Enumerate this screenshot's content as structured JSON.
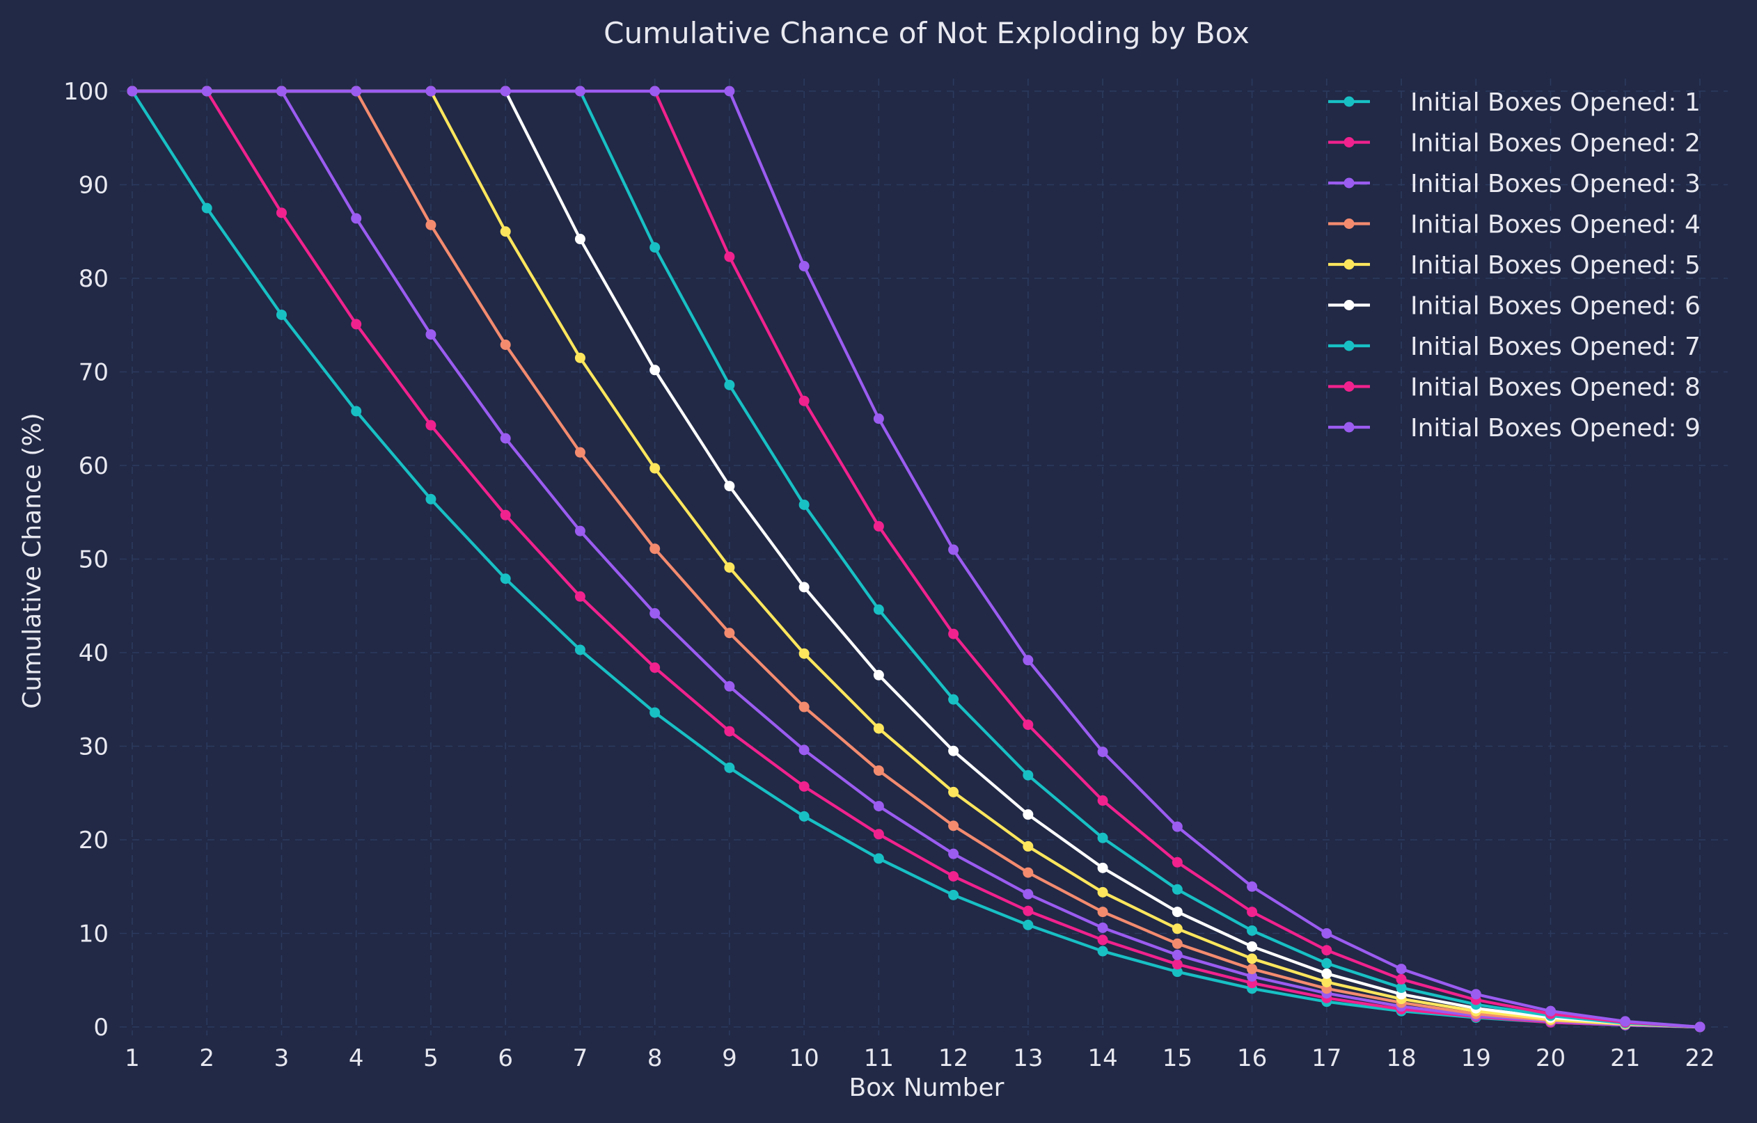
{
  "chart_data": {
    "type": "line",
    "title": "Cumulative Chance of Not Exploding by Box",
    "xlabel": "Box Number",
    "ylabel": "Cumulative Chance (%)",
    "xlim": [
      1,
      22
    ],
    "ylim": [
      0,
      100
    ],
    "x_ticks": [
      1,
      2,
      3,
      4,
      5,
      6,
      7,
      8,
      9,
      10,
      11,
      12,
      13,
      14,
      15,
      16,
      17,
      18,
      19,
      20,
      21,
      22
    ],
    "y_ticks": [
      0,
      10,
      20,
      30,
      40,
      50,
      60,
      70,
      80,
      90,
      100
    ],
    "grid": true,
    "legend_position": "top-right",
    "x": [
      1,
      2,
      3,
      4,
      5,
      6,
      7,
      8,
      9,
      10,
      11,
      12,
      13,
      14,
      15,
      16,
      17,
      18,
      19,
      20,
      21,
      22
    ],
    "series": [
      {
        "name": "Initial Boxes Opened: 1",
        "color": "#18c0c4",
        "values": [
          100,
          87.5,
          76.1,
          65.8,
          56.4,
          47.9,
          40.3,
          33.6,
          27.7,
          22.5,
          18.0,
          14.1,
          10.9,
          8.1,
          5.9,
          4.1,
          2.7,
          1.7,
          1.0,
          0.5,
          0.2,
          0
        ]
      },
      {
        "name": "Initial Boxes Opened: 2",
        "color": "#f0228d",
        "values": [
          100,
          100,
          87.0,
          75.1,
          64.3,
          54.7,
          46.0,
          38.4,
          31.6,
          25.7,
          20.6,
          16.1,
          12.4,
          9.3,
          6.7,
          4.7,
          3.1,
          1.9,
          1.1,
          0.5,
          0.2,
          0
        ]
      },
      {
        "name": "Initial Boxes Opened: 3",
        "color": "#9b5cf0",
        "values": [
          100,
          100,
          100,
          86.4,
          74.0,
          62.9,
          53.0,
          44.2,
          36.4,
          29.6,
          23.6,
          18.5,
          14.2,
          10.6,
          7.7,
          5.4,
          3.6,
          2.2,
          1.2,
          0.6,
          0.2,
          0
        ]
      },
      {
        "name": "Initial Boxes Opened: 4",
        "color": "#f38b6f",
        "values": [
          100,
          100,
          100,
          100,
          85.7,
          72.9,
          61.4,
          51.1,
          42.1,
          34.2,
          27.4,
          21.5,
          16.5,
          12.3,
          8.9,
          6.2,
          4.1,
          2.6,
          1.4,
          0.7,
          0.3,
          0
        ]
      },
      {
        "name": "Initial Boxes Opened: 5",
        "color": "#fde65d",
        "values": [
          100,
          100,
          100,
          100,
          100,
          85.0,
          71.5,
          59.7,
          49.1,
          39.9,
          31.9,
          25.1,
          19.3,
          14.4,
          10.5,
          7.3,
          4.8,
          3.0,
          1.7,
          0.8,
          0.3,
          0
        ]
      },
      {
        "name": "Initial Boxes Opened: 6",
        "color": "#ffffff",
        "values": [
          100,
          100,
          100,
          100,
          100,
          100,
          84.2,
          70.2,
          57.8,
          47.0,
          37.6,
          29.5,
          22.7,
          17.0,
          12.3,
          8.6,
          5.7,
          3.5,
          2.0,
          1.0,
          0.4,
          0
        ]
      },
      {
        "name": "Initial Boxes Opened: 7",
        "color": "#18c0c4",
        "values": [
          100,
          100,
          100,
          100,
          100,
          100,
          100,
          83.3,
          68.6,
          55.8,
          44.6,
          35.0,
          26.9,
          20.2,
          14.7,
          10.3,
          6.8,
          4.2,
          2.4,
          1.2,
          0.4,
          0
        ]
      },
      {
        "name": "Initial Boxes Opened: 8",
        "color": "#f0228d",
        "values": [
          100,
          100,
          100,
          100,
          100,
          100,
          100,
          100,
          82.3,
          66.9,
          53.5,
          42.0,
          32.3,
          24.2,
          17.6,
          12.3,
          8.2,
          5.1,
          2.9,
          1.4,
          0.5,
          0
        ]
      },
      {
        "name": "Initial Boxes Opened: 9",
        "color": "#9b5cf0",
        "values": [
          100,
          100,
          100,
          100,
          100,
          100,
          100,
          100,
          100,
          81.3,
          65.0,
          51.0,
          39.2,
          29.4,
          21.4,
          15.0,
          10.0,
          6.2,
          3.5,
          1.7,
          0.6,
          0
        ]
      }
    ]
  }
}
